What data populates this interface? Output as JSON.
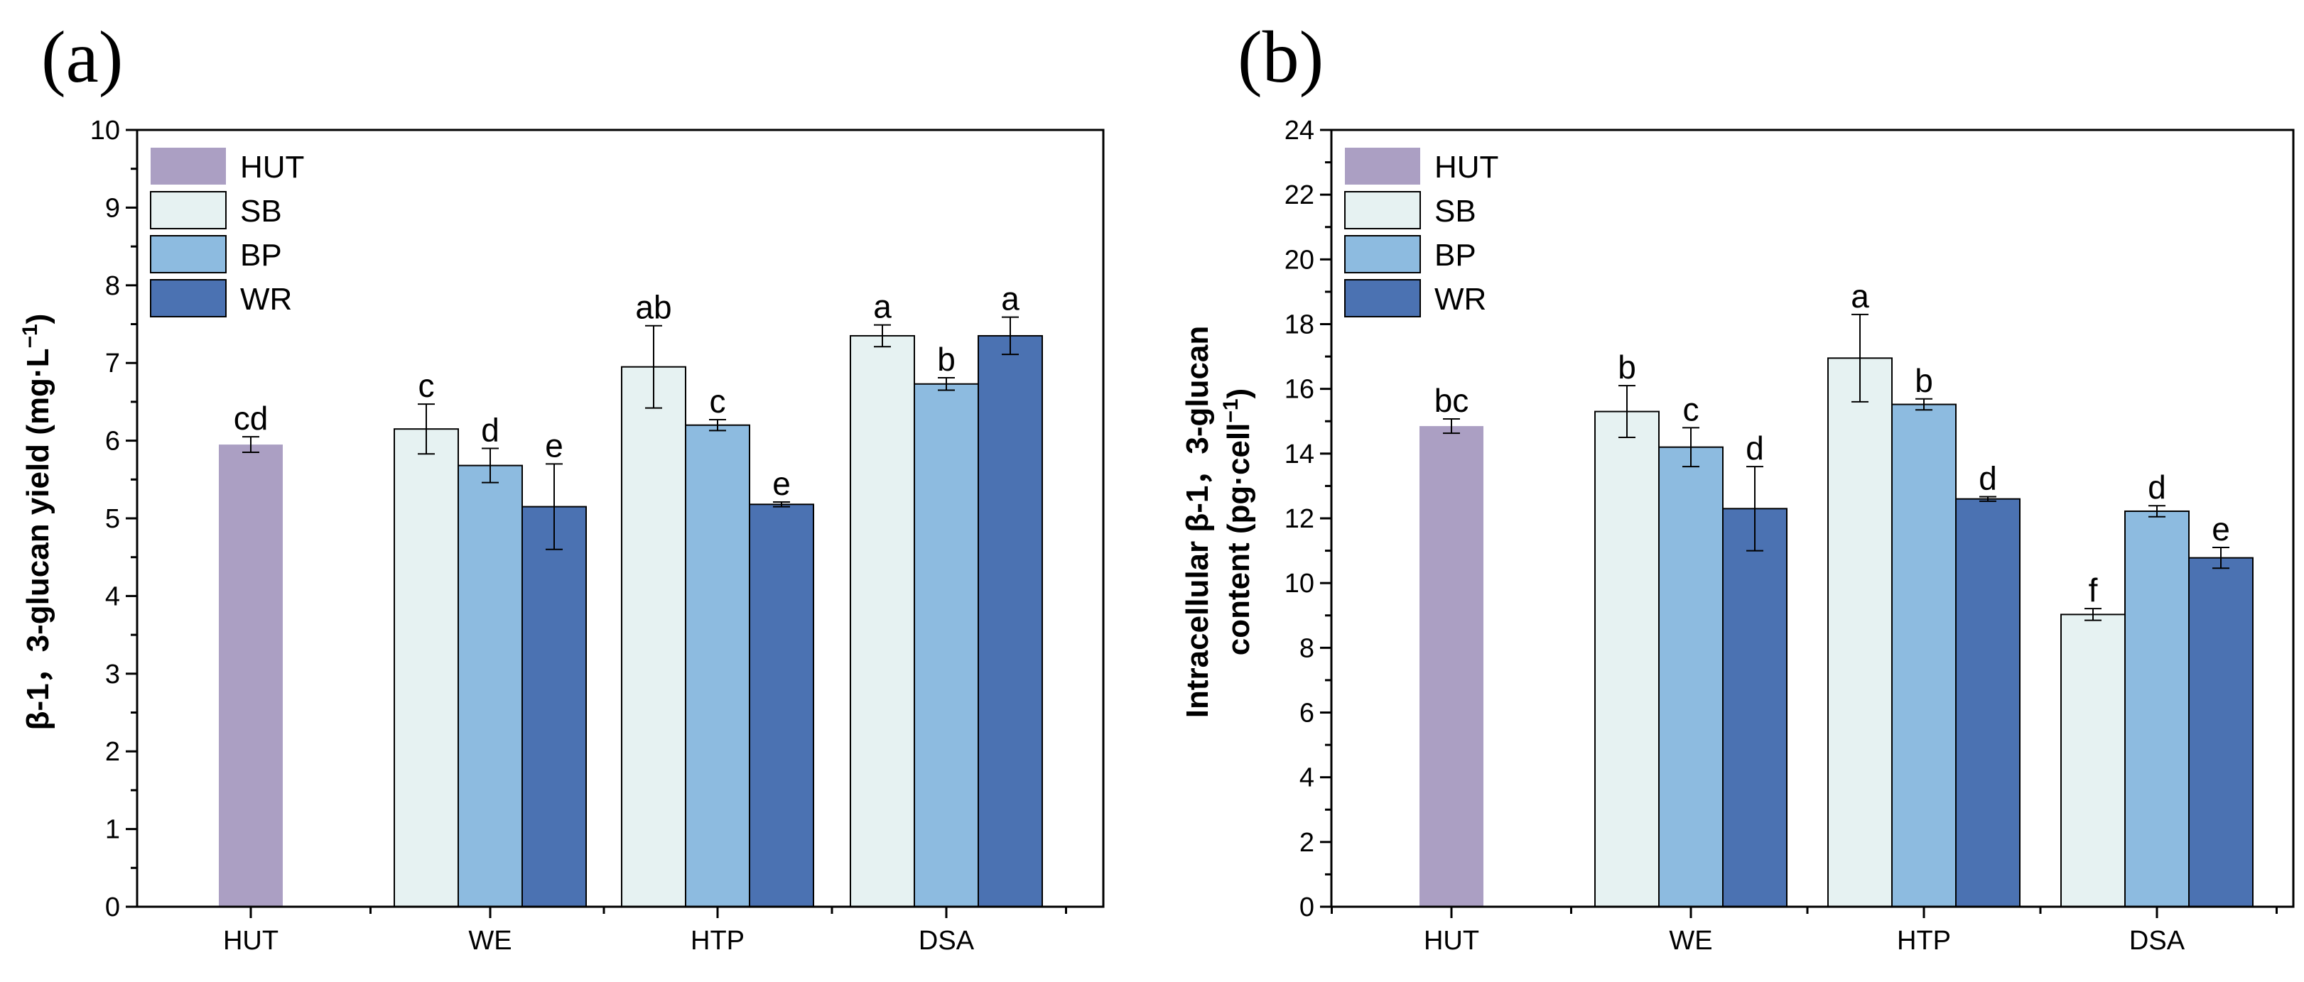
{
  "colors": {
    "HUT": "#ab9fc3",
    "SB": "#e6f2f2",
    "BP": "#8dbbe0",
    "WR": "#4b72b2",
    "axis": "#000000"
  },
  "chart_data": [
    {
      "type": "bar",
      "panel_label": "(a)",
      "ylabel_main": "β-1，3-glucan yield (mg·L",
      "ylabel_sup": "−1",
      "ylabel_end": ")",
      "ylim": [
        0,
        10
      ],
      "yticks": [
        0,
        1,
        2,
        3,
        4,
        5,
        6,
        7,
        8,
        9,
        10
      ],
      "yminor": 0.5,
      "categories": [
        "HUT",
        "WE",
        "HTP",
        "DSA"
      ],
      "legend": [
        "HUT",
        "SB",
        "BP",
        "WR"
      ],
      "legend_position": "top-left",
      "groups": [
        {
          "category": "HUT",
          "bars": [
            {
              "series": "HUT",
              "value": 5.95,
              "err": 0.1,
              "sig": "cd"
            }
          ]
        },
        {
          "category": "WE",
          "bars": [
            {
              "series": "SB",
              "value": 6.15,
              "err": 0.32,
              "sig": "c"
            },
            {
              "series": "BP",
              "value": 5.68,
              "err": 0.22,
              "sig": "d"
            },
            {
              "series": "WR",
              "value": 5.15,
              "err": 0.55,
              "sig": "e"
            }
          ]
        },
        {
          "category": "HTP",
          "bars": [
            {
              "series": "SB",
              "value": 6.95,
              "err": 0.53,
              "sig": "ab"
            },
            {
              "series": "BP",
              "value": 6.2,
              "err": 0.07,
              "sig": "c"
            },
            {
              "series": "WR",
              "value": 5.18,
              "err": 0.03,
              "sig": "e"
            }
          ]
        },
        {
          "category": "DSA",
          "bars": [
            {
              "series": "SB",
              "value": 7.35,
              "err": 0.14,
              "sig": "a"
            },
            {
              "series": "BP",
              "value": 6.73,
              "err": 0.08,
              "sig": "b"
            },
            {
              "series": "WR",
              "value": 7.35,
              "err": 0.24,
              "sig": "a"
            }
          ]
        }
      ]
    },
    {
      "type": "bar",
      "panel_label": "(b)",
      "ylabel_line1": "Intracellular β-1，3-glucan",
      "ylabel_main": "content (pg·cell",
      "ylabel_sup": "−1",
      "ylabel_end": ")",
      "ylim": [
        0,
        24
      ],
      "yticks": [
        0,
        2,
        4,
        6,
        8,
        10,
        12,
        14,
        16,
        18,
        20,
        22,
        24
      ],
      "yminor": 1,
      "categories": [
        "HUT",
        "WE",
        "HTP",
        "DSA"
      ],
      "legend": [
        "HUT",
        "SB",
        "BP",
        "WR"
      ],
      "legend_position": "top-left",
      "groups": [
        {
          "category": "HUT",
          "bars": [
            {
              "series": "HUT",
              "value": 14.85,
              "err": 0.22,
              "sig": "bc"
            }
          ]
        },
        {
          "category": "WE",
          "bars": [
            {
              "series": "SB",
              "value": 15.3,
              "err": 0.8,
              "sig": "b"
            },
            {
              "series": "BP",
              "value": 14.2,
              "err": 0.6,
              "sig": "c"
            },
            {
              "series": "WR",
              "value": 12.3,
              "err": 1.3,
              "sig": "d"
            }
          ]
        },
        {
          "category": "HTP",
          "bars": [
            {
              "series": "SB",
              "value": 16.95,
              "err": 1.35,
              "sig": "a"
            },
            {
              "series": "BP",
              "value": 15.52,
              "err": 0.17,
              "sig": "b"
            },
            {
              "series": "WR",
              "value": 12.6,
              "err": 0.07,
              "sig": "d"
            }
          ]
        },
        {
          "category": "DSA",
          "bars": [
            {
              "series": "SB",
              "value": 9.03,
              "err": 0.18,
              "sig": "f"
            },
            {
              "series": "BP",
              "value": 12.22,
              "err": 0.17,
              "sig": "d"
            },
            {
              "series": "WR",
              "value": 10.78,
              "err": 0.32,
              "sig": "e"
            }
          ]
        }
      ]
    }
  ]
}
